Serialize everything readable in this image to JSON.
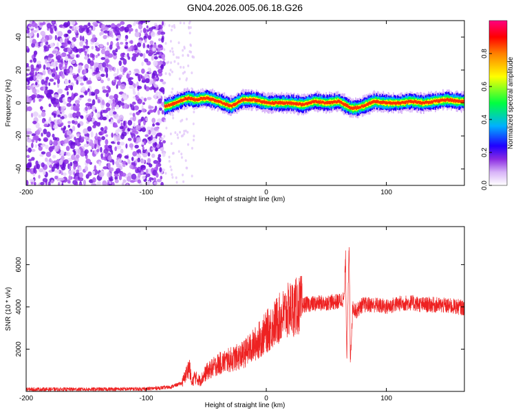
{
  "title": "GN04.2026.005.06.18.G26",
  "chart_data": [
    {
      "type": "heatmap",
      "xlabel": "Height of straight line (km)",
      "ylabel": "Frequency (Hz)",
      "xlim": [
        -200,
        165
      ],
      "ylim": [
        -50,
        50
      ],
      "xticks": [
        -200,
        -100,
        0,
        100
      ],
      "yticks": [
        -40,
        -20,
        0,
        20,
        40
      ],
      "colorbar": {
        "label": "Normalized spectral amplitude",
        "range": [
          0,
          1
        ],
        "ticks": [
          0.0,
          0.2,
          0.4,
          0.6,
          0.8
        ],
        "colormap": [
          "#ffffff",
          "#d8b4f8",
          "#7f00ff",
          "#0000ff",
          "#00c8ff",
          "#00ff00",
          "#ffff00",
          "#ff8000",
          "#ff0000",
          "#ff0080"
        ]
      },
      "signal_track": {
        "x": [
          -85,
          -80,
          -70,
          -65,
          -60,
          -50,
          -40,
          -30,
          -20,
          -10,
          0,
          10,
          20,
          30,
          40,
          50,
          60,
          70,
          75,
          80,
          90,
          100,
          110,
          120,
          130,
          140,
          150,
          160,
          165
        ],
        "frequency": [
          -2,
          -1,
          2,
          3,
          2,
          3,
          1,
          -2,
          2,
          2,
          0,
          0,
          0,
          -1,
          1,
          0,
          1,
          -3,
          -3,
          -2,
          1,
          0,
          0,
          1,
          0,
          1,
          2,
          1,
          1
        ]
      },
      "noise_region": {
        "x_from": -200,
        "x_to": -85
      }
    },
    {
      "type": "line",
      "xlabel": "Height of straight line (km)",
      "ylabel": "SNR (10 * v/v)",
      "xlim": [
        -200,
        165
      ],
      "ylim": [
        0,
        7800
      ],
      "xticks": [
        -200,
        -100,
        0,
        100
      ],
      "yticks": [
        2000,
        4000,
        6000
      ],
      "color": "#ee2222",
      "series": [
        {
          "x": [
            -200,
            -150,
            -100,
            -80,
            -70,
            -64,
            -62,
            -60,
            -55,
            -50,
            -40,
            -30,
            -20,
            -10,
            0,
            10,
            20,
            30,
            40,
            50,
            60,
            65,
            66,
            67,
            68,
            69,
            70,
            72,
            75,
            80,
            90,
            100,
            110,
            120,
            130,
            140,
            150,
            160,
            165
          ],
          "y": [
            100,
            100,
            120,
            200,
            400,
            1200,
            300,
            700,
            500,
            900,
            1300,
            1500,
            1700,
            2200,
            2800,
            3400,
            3900,
            4100,
            4150,
            4200,
            4250,
            4400,
            6500,
            1600,
            4300,
            6800,
            1500,
            4000,
            3800,
            4100,
            4100,
            4000,
            4150,
            4200,
            4100,
            4100,
            4050,
            4000,
            3950
          ]
        }
      ]
    }
  ]
}
